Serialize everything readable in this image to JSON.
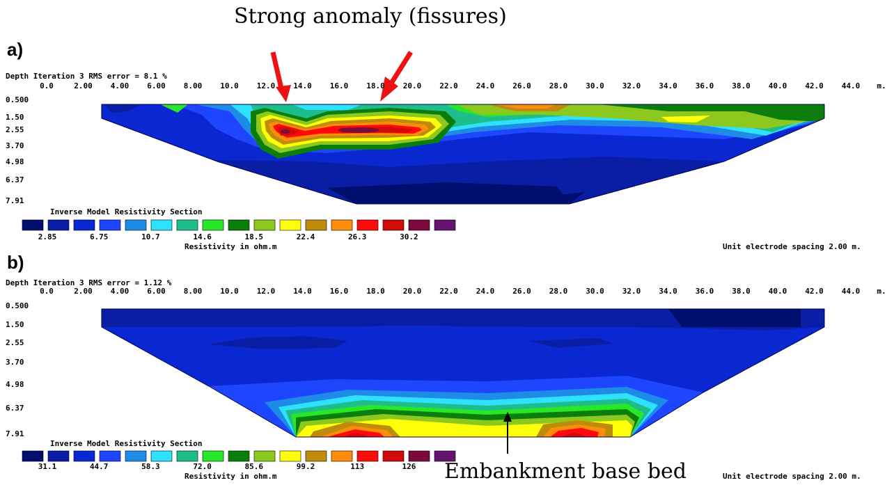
{
  "annotations": {
    "top": "Strong anomaly (fissures)",
    "bottom": "Embankment base bed"
  },
  "panels": [
    {
      "letter": "a)",
      "header": "Depth  Iteration 3 RMS error = 8.1 %",
      "x_ticks": [
        "0.0",
        "2.00",
        "4.00",
        "6.00",
        "8.00",
        "10.0",
        "12.0",
        "14.0",
        "16.0",
        "18.0",
        "20.0",
        "22.0",
        "24.0",
        "26.0",
        "28.0",
        "30.0",
        "32.0",
        "34.0",
        "36.0",
        "38.0",
        "40.0",
        "42.0",
        "44.0"
      ],
      "x_unit": "m.",
      "depths": [
        "0.500",
        "1.50",
        "2.55",
        "3.70",
        "4.98",
        "6.37",
        "7.91"
      ],
      "legend_title": "Inverse Model Resistivity Section",
      "legend_values": [
        "2.85",
        "6.75",
        "10.7",
        "14.6",
        "18.5",
        "22.4",
        "26.3",
        "30.2"
      ],
      "legend_unit": "Resistivity in ohm.m",
      "footer": "Unit electrode spacing 2.00 m."
    },
    {
      "letter": "b)",
      "header": "Depth  Iteration 3 RMS error = 1.12 %",
      "x_ticks": [
        "0.0",
        "2.00",
        "4.00",
        "6.00",
        "8.00",
        "10.0",
        "12.0",
        "14.0",
        "16.0",
        "18.0",
        "20.0",
        "22.0",
        "24.0",
        "26.0",
        "28.0",
        "30.0",
        "32.0",
        "34.0",
        "36.0",
        "38.0",
        "40.0",
        "42.0",
        "44.0"
      ],
      "x_unit": "m.",
      "depths": [
        "0.500",
        "1.50",
        "2.55",
        "3.70",
        "4.98",
        "6.37",
        "7.91"
      ],
      "legend_title": "Inverse Model Resistivity Section",
      "legend_values": [
        "31.1",
        "44.7",
        "58.3",
        "72.0",
        "85.6",
        "99.2",
        "113",
        "126"
      ],
      "legend_unit": "Resistivity in ohm.m",
      "footer": "Unit electrode spacing 2.00 m."
    }
  ],
  "colors": {
    "scale": [
      "#000f6e",
      "#0a1ea5",
      "#0a28d2",
      "#1e46ff",
      "#1e8ce6",
      "#2ee1ff",
      "#1ebe8c",
      "#28e628",
      "#0a7d0a",
      "#8cc81e",
      "#ffff0a",
      "#be8c0a",
      "#ff8c0a",
      "#ff0a0a",
      "#d20a0a",
      "#7d0a3c",
      "#64146e"
    ],
    "arrow": "#ee1111"
  },
  "chart_data": [
    {
      "type": "heatmap",
      "title": "Inverse Model Resistivity Section",
      "subtitle": "Iteration 3 RMS error = 8.1 %",
      "x_unit": "m.",
      "y_label": "Depth",
      "x_range": [
        0,
        44
      ],
      "depth_levels": [
        0.5,
        1.5,
        2.55,
        3.7,
        4.98,
        6.37,
        7.91
      ],
      "legend_values_ohm_m": [
        2.85,
        6.75,
        10.7,
        14.6,
        18.5,
        22.4,
        26.3,
        30.2
      ],
      "legend_label": "Resistivity in ohm.m",
      "electrode_spacing_m": 2.0
    },
    {
      "type": "heatmap",
      "title": "Inverse Model Resistivity Section",
      "subtitle": "Iteration 3 RMS error = 1.12 %",
      "x_unit": "m.",
      "y_label": "Depth",
      "x_range": [
        0,
        44
      ],
      "depth_levels": [
        0.5,
        1.5,
        2.55,
        3.7,
        4.98,
        6.37,
        7.91
      ],
      "legend_values_ohm_m": [
        31.1,
        44.7,
        58.3,
        72.0,
        85.6,
        99.2,
        113,
        126
      ],
      "legend_label": "Resistivity in ohm.m",
      "electrode_spacing_m": 2.0
    }
  ]
}
